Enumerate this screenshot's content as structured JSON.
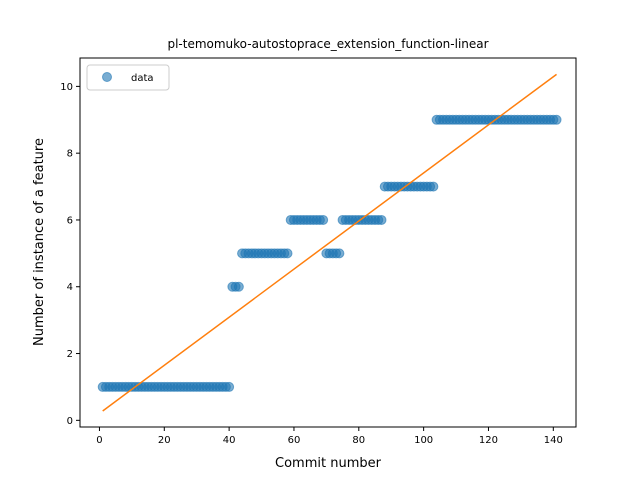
{
  "chart_data": {
    "type": "scatter",
    "title": "pl-temomuko-autostoprace_extension_function-linear",
    "xlabel": "Commit number",
    "ylabel": "Number of instance of a feature",
    "xlim": [
      -6.0,
      147.0
    ],
    "ylim": [
      -0.2,
      10.85
    ],
    "xticks": [
      0,
      20,
      40,
      60,
      80,
      100,
      120,
      140
    ],
    "yticks": [
      0,
      2,
      4,
      6,
      8,
      10
    ],
    "grid": false,
    "legend": {
      "placement": "top-left",
      "entries": [
        "data"
      ]
    },
    "colors": {
      "points": "#1f77b4",
      "fit_line": "#ff7f0e"
    },
    "series": [
      {
        "name": "data",
        "kind": "scatter",
        "segments": [
          {
            "x_start": 1,
            "x_end": 40,
            "y": 1
          },
          {
            "x_start": 41,
            "x_end": 43,
            "y": 4
          },
          {
            "x_start": 44,
            "x_end": 58,
            "y": 5
          },
          {
            "x_start": 59,
            "x_end": 69,
            "y": 6
          },
          {
            "x_start": 70,
            "x_end": 74,
            "y": 5
          },
          {
            "x_start": 75,
            "x_end": 87,
            "y": 6
          },
          {
            "x_start": 88,
            "x_end": 103,
            "y": 7
          },
          {
            "x_start": 104,
            "x_end": 141,
            "y": 9
          }
        ]
      },
      {
        "kind": "line",
        "x": [
          1,
          141
        ],
        "y": [
          0.28,
          10.36
        ]
      }
    ]
  }
}
